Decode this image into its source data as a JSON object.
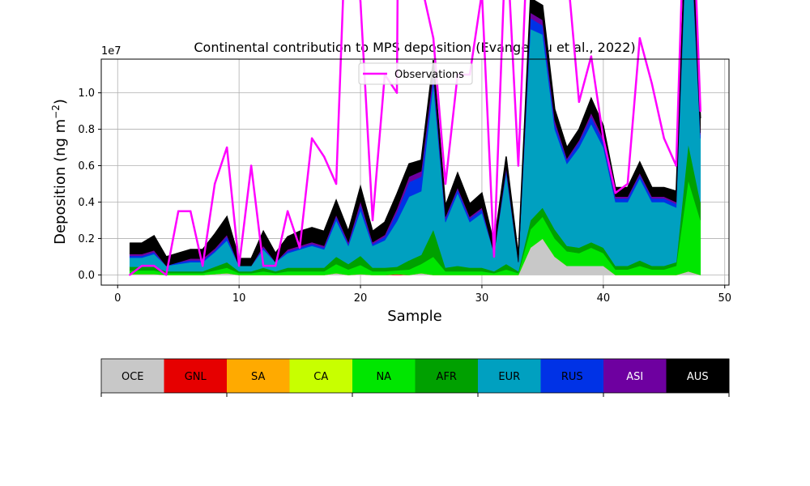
{
  "chart_data": {
    "type": "area",
    "title": "Continental contribution to MPS deposition (Evangeliou et al., 2022)",
    "xlabel": "Sample",
    "ylabel": "Deposition (ng m",
    "ylabel_unit_sup": "−2",
    "ylabel_close": ")",
    "y_offset_label": "1e7",
    "xlim": [
      -1.35,
      50.35
    ],
    "ylim": [
      -0.056,
      1.185
    ],
    "y_multiplier": 10000000,
    "xticks": [
      0,
      10,
      20,
      30,
      40,
      50
    ],
    "xtick_labels": [
      "0",
      "10",
      "20",
      "30",
      "40",
      "50"
    ],
    "yticks": [
      0.0,
      0.2,
      0.4,
      0.6,
      0.8,
      1.0
    ],
    "ytick_labels": [
      "0.0",
      "0.2",
      "0.4",
      "0.6",
      "0.8",
      "1.0"
    ],
    "grid": true,
    "legend": {
      "position": "top-center",
      "entries": [
        "Observations"
      ]
    },
    "x": [
      1,
      2,
      3,
      4,
      5,
      6,
      7,
      8,
      9,
      10,
      11,
      12,
      13,
      14,
      15,
      16,
      17,
      18,
      19,
      20,
      21,
      22,
      23,
      24,
      25,
      26,
      27,
      28,
      29,
      30,
      31,
      32,
      33,
      34,
      35,
      36,
      37,
      38,
      39,
      40,
      41,
      42,
      43,
      44,
      45,
      46,
      47,
      48
    ],
    "series": [
      {
        "name": "OCE",
        "color": "#c8c8c8",
        "values": [
          0.005,
          0.005,
          0.005,
          0.0,
          0.0,
          0.0,
          0.0,
          0.005,
          0.01,
          0.0,
          0.0,
          0.0,
          0.0,
          0.0,
          0.0,
          0.0,
          0.0,
          0.01,
          0.0,
          0.005,
          0.0,
          0.0,
          0.0,
          0.0,
          0.01,
          0.0,
          0.0,
          0.0,
          0.0,
          0.0,
          0.0,
          0.0,
          0.0,
          0.15,
          0.2,
          0.1,
          0.05,
          0.05,
          0.05,
          0.05,
          0.0,
          0.0,
          0.0,
          0.0,
          0.0,
          0.0,
          0.02,
          0.0
        ]
      },
      {
        "name": "GNL",
        "color": "#e60000",
        "values": [
          0.0,
          0.0,
          0.0,
          0.0,
          0.0,
          0.0,
          0.0,
          0.0,
          0.0,
          0.0,
          0.0,
          0.0,
          0.0,
          0.0,
          0.0,
          0.0,
          0.0,
          0.0,
          0.0,
          0.0,
          0.0,
          0.0,
          0.005,
          0.0,
          0.0,
          0.0,
          0.0,
          0.0,
          0.0,
          0.0,
          0.0,
          0.0,
          0.0,
          0.0,
          0.0,
          0.0,
          0.0,
          0.0,
          0.0,
          0.0,
          0.0,
          0.0,
          0.0,
          0.0,
          0.0,
          0.0,
          0.0,
          0.0
        ]
      },
      {
        "name": "SA",
        "color": "#ffaa00",
        "values": [
          0.0,
          0.0,
          0.0,
          0.0,
          0.0,
          0.0,
          0.0,
          0.0,
          0.0,
          0.0,
          0.0,
          0.0,
          0.0,
          0.0,
          0.0,
          0.0,
          0.0,
          0.0,
          0.0,
          0.0,
          0.0,
          0.0,
          0.0,
          0.0,
          0.0,
          0.0,
          0.0,
          0.0,
          0.0,
          0.0,
          0.0,
          0.0,
          0.0,
          0.0,
          0.0,
          0.0,
          0.0,
          0.0,
          0.0,
          0.0,
          0.0,
          0.0,
          0.0,
          0.0,
          0.0,
          0.0,
          0.0,
          0.0
        ]
      },
      {
        "name": "CA",
        "color": "#c8ff00",
        "values": [
          0.0,
          0.0,
          0.0,
          0.0,
          0.0,
          0.0,
          0.0,
          0.0,
          0.0,
          0.0,
          0.0,
          0.0,
          0.0,
          0.0,
          0.0,
          0.0,
          0.0,
          0.0,
          0.0,
          0.0,
          0.0,
          0.0,
          0.0,
          0.0,
          0.0,
          0.0,
          0.0,
          0.0,
          0.0,
          0.0,
          0.0,
          0.0,
          0.0,
          0.0,
          0.0,
          0.0,
          0.0,
          0.0,
          0.0,
          0.0,
          0.0,
          0.0,
          0.0,
          0.0,
          0.0,
          0.0,
          0.0,
          0.0
        ]
      },
      {
        "name": "NA",
        "color": "#00e600",
        "values": [
          0.02,
          0.02,
          0.02,
          0.01,
          0.01,
          0.01,
          0.01,
          0.02,
          0.03,
          0.01,
          0.01,
          0.02,
          0.01,
          0.02,
          0.02,
          0.02,
          0.02,
          0.05,
          0.03,
          0.05,
          0.02,
          0.02,
          0.02,
          0.03,
          0.05,
          0.1,
          0.02,
          0.02,
          0.02,
          0.02,
          0.01,
          0.03,
          0.01,
          0.1,
          0.12,
          0.1,
          0.08,
          0.07,
          0.1,
          0.07,
          0.03,
          0.03,
          0.05,
          0.03,
          0.03,
          0.05,
          0.5,
          0.3
        ]
      },
      {
        "name": "AFR",
        "color": "#00a000",
        "values": [
          0.02,
          0.02,
          0.02,
          0.01,
          0.01,
          0.01,
          0.01,
          0.02,
          0.03,
          0.01,
          0.01,
          0.02,
          0.01,
          0.02,
          0.02,
          0.02,
          0.02,
          0.04,
          0.03,
          0.05,
          0.02,
          0.02,
          0.02,
          0.05,
          0.05,
          0.15,
          0.02,
          0.03,
          0.02,
          0.02,
          0.01,
          0.03,
          0.01,
          0.05,
          0.05,
          0.05,
          0.03,
          0.03,
          0.03,
          0.03,
          0.02,
          0.02,
          0.03,
          0.02,
          0.02,
          0.02,
          0.2,
          0.1
        ]
      },
      {
        "name": "EUR",
        "color": "#00a0c0",
        "values": [
          0.05,
          0.05,
          0.07,
          0.03,
          0.04,
          0.05,
          0.05,
          0.08,
          0.12,
          0.03,
          0.03,
          0.1,
          0.05,
          0.08,
          0.1,
          0.12,
          0.1,
          0.2,
          0.1,
          0.25,
          0.12,
          0.15,
          0.25,
          0.35,
          0.35,
          0.8,
          0.25,
          0.4,
          0.25,
          0.3,
          0.1,
          0.5,
          0.05,
          1.05,
          0.95,
          0.55,
          0.45,
          0.55,
          0.65,
          0.55,
          0.35,
          0.35,
          0.45,
          0.35,
          0.35,
          0.3,
          1.4,
          0.35
        ]
      },
      {
        "name": "RUS",
        "color": "#0032e6",
        "values": [
          0.01,
          0.01,
          0.01,
          0.0,
          0.01,
          0.01,
          0.01,
          0.01,
          0.02,
          0.0,
          0.0,
          0.01,
          0.0,
          0.01,
          0.01,
          0.01,
          0.01,
          0.02,
          0.01,
          0.03,
          0.01,
          0.02,
          0.05,
          0.08,
          0.08,
          0.04,
          0.02,
          0.02,
          0.02,
          0.02,
          0.0,
          0.02,
          0.0,
          0.06,
          0.05,
          0.03,
          0.02,
          0.03,
          0.04,
          0.03,
          0.02,
          0.02,
          0.02,
          0.02,
          0.02,
          0.02,
          0.05,
          0.02
        ]
      },
      {
        "name": "ASI",
        "color": "#6e00a0",
        "values": [
          0.01,
          0.01,
          0.01,
          0.0,
          0.0,
          0.01,
          0.01,
          0.01,
          0.01,
          0.0,
          0.0,
          0.01,
          0.0,
          0.01,
          0.01,
          0.01,
          0.01,
          0.01,
          0.01,
          0.02,
          0.01,
          0.01,
          0.02,
          0.03,
          0.03,
          0.03,
          0.01,
          0.01,
          0.01,
          0.01,
          0.0,
          0.01,
          0.0,
          0.03,
          0.03,
          0.02,
          0.01,
          0.01,
          0.02,
          0.02,
          0.01,
          0.01,
          0.01,
          0.01,
          0.01,
          0.01,
          0.03,
          0.01
        ]
      },
      {
        "name": "AUS",
        "color": "#000000",
        "values": [
          0.06,
          0.06,
          0.08,
          0.05,
          0.05,
          0.05,
          0.05,
          0.08,
          0.1,
          0.04,
          0.04,
          0.08,
          0.05,
          0.07,
          0.08,
          0.08,
          0.08,
          0.08,
          0.06,
          0.08,
          0.06,
          0.07,
          0.08,
          0.07,
          0.06,
          0.06,
          0.06,
          0.08,
          0.07,
          0.08,
          0.05,
          0.06,
          0.04,
          0.08,
          0.08,
          0.06,
          0.06,
          0.06,
          0.08,
          0.07,
          0.05,
          0.05,
          0.06,
          0.05,
          0.05,
          0.06,
          0.1,
          0.08
        ]
      }
    ],
    "observations": {
      "name": "Observations",
      "color": "#ff00ff",
      "values": [
        0.0,
        0.05,
        0.05,
        0.0,
        0.35,
        0.35,
        0.05,
        0.5,
        0.7,
        0.05,
        0.6,
        0.05,
        0.05,
        0.35,
        0.15,
        0.75,
        0.65,
        0.5,
        2.3,
        1.5,
        0.3,
        1.1,
        1.0,
        10.7,
        1.6,
        1.3,
        0.5,
        1.1,
        1.1,
        1.55,
        0.1,
        1.9,
        0.6,
        2.25,
        1.65,
        1.85,
        1.7,
        0.95,
        1.2,
        0.75,
        0.45,
        0.5,
        1.3,
        1.05,
        0.75,
        0.6,
        2.7,
        0.9
      ]
    },
    "colorbar": {
      "labels": [
        "OCE",
        "GNL",
        "SA",
        "CA",
        "NA",
        "AFR",
        "EUR",
        "RUS",
        "ASI",
        "AUS"
      ],
      "colors": [
        "#c8c8c8",
        "#e60000",
        "#ffaa00",
        "#c8ff00",
        "#00e600",
        "#00a000",
        "#00a0c0",
        "#0032e6",
        "#6e00a0",
        "#000000"
      ],
      "text_colors": [
        "#000000",
        "#000000",
        "#000000",
        "#000000",
        "#000000",
        "#000000",
        "#000000",
        "#000000",
        "#ffffff",
        "#ffffff"
      ]
    }
  }
}
